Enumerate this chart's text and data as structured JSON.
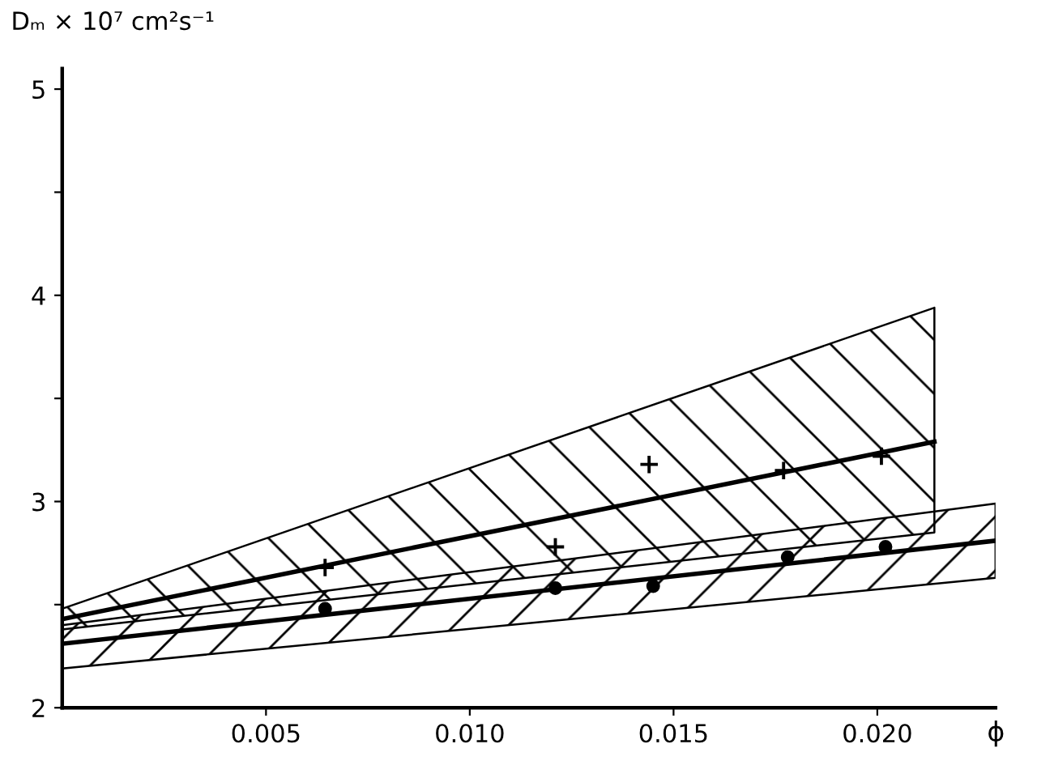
{
  "chart_data": {
    "type": "scatter",
    "xlabel": "ϕ",
    "ylabel": "Dₘ × 10⁷ cm²s⁻¹",
    "xlim": [
      0,
      0.0229
    ],
    "ylim": [
      2,
      5.1
    ],
    "xticks": [
      {
        "value": 0.005,
        "label": "0.005"
      },
      {
        "value": 0.01,
        "label": "0.010"
      },
      {
        "value": 0.015,
        "label": "0.015"
      },
      {
        "value": 0.02,
        "label": "0.020"
      }
    ],
    "yticks": [
      2,
      {
        "value": 2.5,
        "label": null
      },
      3,
      {
        "value": 3.5,
        "label": null
      },
      4,
      {
        "value": 4.5,
        "label": null
      },
      5
    ],
    "grid": false,
    "legend": false,
    "series": [
      {
        "marker": "cross",
        "color": "#000000",
        "x": [
          0.00645,
          0.0121,
          0.0144,
          0.0177,
          0.0201
        ],
        "values": [
          2.68,
          2.78,
          3.18,
          3.15,
          3.22
        ]
      },
      {
        "marker": "circle",
        "color": "#000000",
        "x": [
          0.00645,
          0.0121,
          0.0145,
          0.0178,
          0.0202
        ],
        "values": [
          2.48,
          2.58,
          2.59,
          2.73,
          2.78
        ]
      },
      {
        "type": "line",
        "marker": "none",
        "line_style": "solid",
        "color": "#000000",
        "x": [
          0,
          0.0214
        ],
        "values": [
          2.43,
          3.29
        ],
        "lower": [
          2.38,
          2.85
        ],
        "upper": [
          2.48,
          3.94
        ]
      },
      {
        "type": "line",
        "marker": "none",
        "line_style": "solid",
        "color": "#000000",
        "x": [
          0,
          0.0229
        ],
        "values": [
          2.31,
          2.81
        ],
        "lower": [
          2.19,
          2.63
        ],
        "upper": [
          2.4,
          2.99
        ]
      }
    ]
  }
}
